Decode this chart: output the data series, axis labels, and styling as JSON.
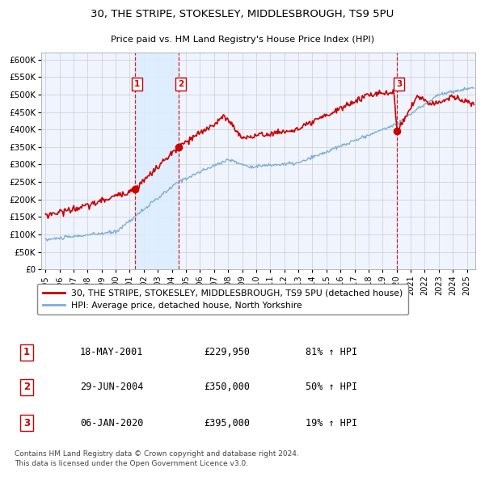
{
  "title1": "30, THE STRIPE, STOKESLEY, MIDDLESBROUGH, TS9 5PU",
  "title2": "Price paid vs. HM Land Registry's House Price Index (HPI)",
  "legend_line1": "30, THE STRIPE, STOKESLEY, MIDDLESBROUGH, TS9 5PU (detached house)",
  "legend_line2": "HPI: Average price, detached house, North Yorkshire",
  "footer1": "Contains HM Land Registry data © Crown copyright and database right 2024.",
  "footer2": "This data is licensed under the Open Government Licence v3.0.",
  "transactions": [
    {
      "num": 1,
      "date": "18-MAY-2001",
      "price": 229950,
      "year": 2001.38,
      "pct": "81%",
      "dir": "↑"
    },
    {
      "num": 2,
      "date": "29-JUN-2004",
      "price": 350000,
      "year": 2004.49,
      "pct": "50%",
      "dir": "↑"
    },
    {
      "num": 3,
      "date": "06-JAN-2020",
      "price": 395000,
      "year": 2020.01,
      "pct": "19%",
      "dir": "↑"
    }
  ],
  "hpi_color": "#7bafd4",
  "price_color": "#cc0000",
  "dot_color": "#cc0000",
  "shade_color": "#ddeeff",
  "vline_color": "#cc0000",
  "grid_color": "#cccccc",
  "plot_bg": "#f0f4ff",
  "ylim": [
    0,
    620000
  ],
  "yticks": [
    0,
    50000,
    100000,
    150000,
    200000,
    250000,
    300000,
    350000,
    400000,
    450000,
    500000,
    550000,
    600000
  ],
  "xlim_start": 1994.7,
  "xlim_end": 2025.6
}
